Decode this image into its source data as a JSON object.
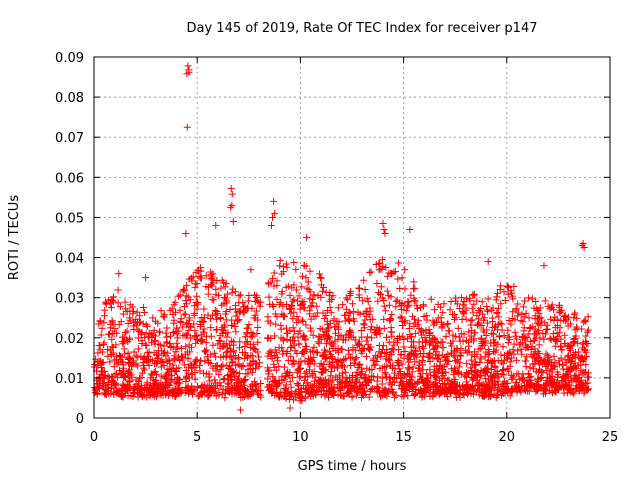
{
  "chart_data": {
    "type": "scatter",
    "title": "Day 145 of 2019, Rate Of TEC Index for receiver p147",
    "xlabel": "GPS time / hours",
    "ylabel": "ROTI / TECUs",
    "xlim": [
      0,
      25
    ],
    "ylim": [
      0,
      0.09
    ],
    "x_ticks": [
      0,
      5,
      10,
      15,
      20,
      25
    ],
    "x_tick_labels": [
      "0",
      "5",
      "10",
      "15",
      "20",
      "25"
    ],
    "y_ticks": [
      0,
      0.01,
      0.02,
      0.03,
      0.04,
      0.05,
      0.06,
      0.07,
      0.08,
      0.09
    ],
    "y_tick_labels": [
      "0",
      "0.01",
      "0.02",
      "0.03",
      "0.04",
      "0.05",
      "0.06",
      "0.07",
      "0.08",
      "0.09"
    ],
    "grid": true,
    "marker": "+",
    "color": "#ff0000",
    "data_x_range": [
      0,
      24
    ],
    "data_gap_hours": [
      8.1,
      8.4
    ],
    "envelope": {
      "hours": [
        0,
        1,
        2,
        3,
        4,
        5,
        6,
        7,
        8,
        9,
        10,
        11,
        12,
        13,
        14,
        15,
        16,
        17,
        18,
        19,
        20,
        21,
        22,
        23,
        24
      ],
      "baseline": [
        0.007,
        0.006,
        0.006,
        0.006,
        0.006,
        0.006,
        0.006,
        0.006,
        0.006,
        0.006,
        0.005,
        0.006,
        0.006,
        0.006,
        0.006,
        0.006,
        0.006,
        0.006,
        0.006,
        0.006,
        0.006,
        0.007,
        0.007,
        0.007,
        0.007
      ],
      "typical_max": [
        0.022,
        0.033,
        0.028,
        0.025,
        0.03,
        0.038,
        0.036,
        0.033,
        0.03,
        0.04,
        0.04,
        0.035,
        0.03,
        0.034,
        0.04,
        0.038,
        0.03,
        0.028,
        0.032,
        0.03,
        0.034,
        0.03,
        0.03,
        0.026,
        0.026
      ]
    },
    "outliers": [
      {
        "x": 4.55,
        "y": 0.0878
      },
      {
        "x": 4.6,
        "y": 0.0868
      },
      {
        "x": 4.5,
        "y": 0.0858
      },
      {
        "x": 4.6,
        "y": 0.0862
      },
      {
        "x": 4.52,
        "y": 0.0725
      },
      {
        "x": 6.65,
        "y": 0.0572
      },
      {
        "x": 6.7,
        "y": 0.0558
      },
      {
        "x": 6.68,
        "y": 0.053
      },
      {
        "x": 6.62,
        "y": 0.0525
      },
      {
        "x": 6.75,
        "y": 0.049
      },
      {
        "x": 8.7,
        "y": 0.054
      },
      {
        "x": 8.75,
        "y": 0.051
      },
      {
        "x": 8.65,
        "y": 0.05
      },
      {
        "x": 8.6,
        "y": 0.048
      },
      {
        "x": 14.0,
        "y": 0.0485
      },
      {
        "x": 14.05,
        "y": 0.047
      },
      {
        "x": 14.1,
        "y": 0.046
      },
      {
        "x": 15.3,
        "y": 0.047
      },
      {
        "x": 23.7,
        "y": 0.0435
      },
      {
        "x": 23.75,
        "y": 0.0425
      },
      {
        "x": 23.65,
        "y": 0.043
      },
      {
        "x": 7.1,
        "y": 0.002
      },
      {
        "x": 9.5,
        "y": 0.0025
      },
      {
        "x": 4.45,
        "y": 0.046
      },
      {
        "x": 10.3,
        "y": 0.045
      },
      {
        "x": 1.2,
        "y": 0.036
      },
      {
        "x": 2.5,
        "y": 0.035
      },
      {
        "x": 5.9,
        "y": 0.048
      },
      {
        "x": 7.6,
        "y": 0.037
      },
      {
        "x": 17.8,
        "y": 0.03
      },
      {
        "x": 19.1,
        "y": 0.039
      },
      {
        "x": 21.8,
        "y": 0.038
      }
    ]
  }
}
